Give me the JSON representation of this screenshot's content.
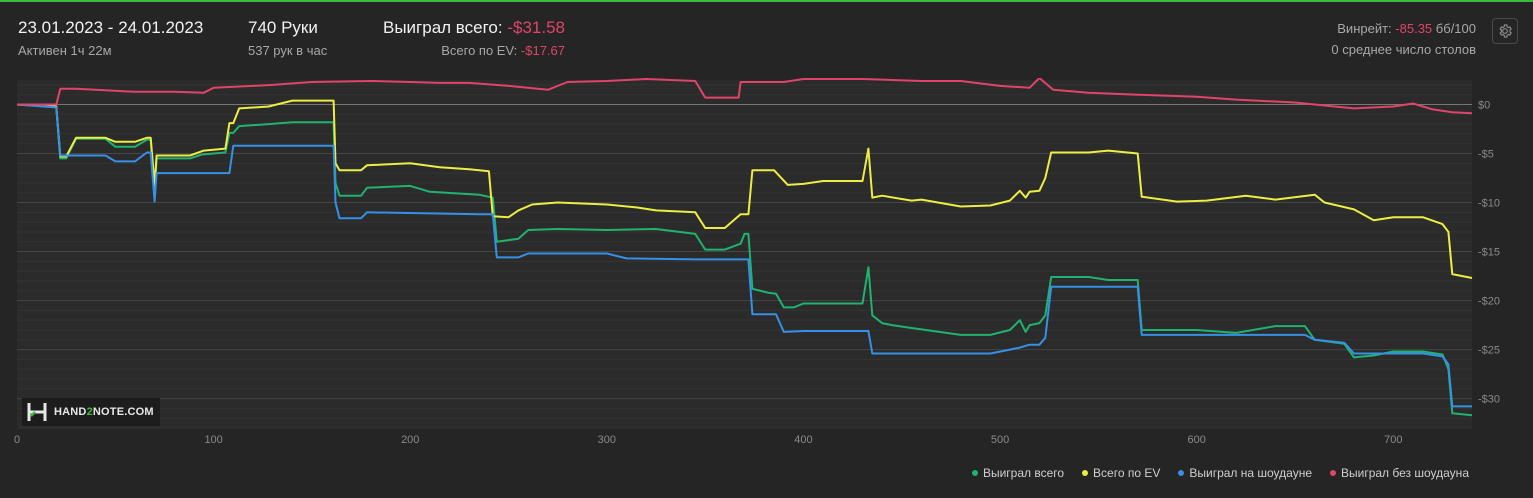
{
  "header": {
    "date_range": "23.01.2023 - 24.01.2023",
    "active_time": "Активен 1ч 22м",
    "hands": "740 Руки",
    "hands_per_hour": "537 рук в час",
    "won_total_label": "Выиграл всего:",
    "won_total_value": "-$31.58",
    "ev_total_label": "Всего по EV:",
    "ev_total_value": "-$17.67",
    "winrate_label": "Винрейт:",
    "winrate_value": "-85.35",
    "winrate_unit": "бб/100",
    "avg_tables": "0 среднее число столов",
    "settings_icon": "gear-icon"
  },
  "logo": {
    "text_pre": "HAND",
    "text_two": "2",
    "text_post": "NOTE.COM"
  },
  "legend": [
    {
      "label": "Выиграл всего",
      "color": "#1fb36f"
    },
    {
      "label": "Всего по EV",
      "color": "#eded42"
    },
    {
      "label": "Выиграл на шоудауне",
      "color": "#3590e6"
    },
    {
      "label": "Выиграл без шоудауна",
      "color": "#e0446a"
    }
  ],
  "chart_data": {
    "type": "line",
    "xlim": [
      0,
      740
    ],
    "ylim": [
      -33,
      2.5
    ],
    "x_ticks": [
      0,
      100,
      200,
      300,
      400,
      500,
      600,
      700
    ],
    "y_ticks": [
      {
        "value": 0,
        "label": "$0"
      },
      {
        "value": -5,
        "label": "-$5"
      },
      {
        "value": -10,
        "label": "-$10"
      },
      {
        "value": -15,
        "label": "-$15"
      },
      {
        "value": -20,
        "label": "-$20"
      },
      {
        "value": -25,
        "label": "-$25"
      },
      {
        "value": -30,
        "label": "-$30"
      }
    ],
    "grid": true,
    "legend_position": "bottom-right",
    "series": [
      {
        "name": "Выиграл всего",
        "color": "#1fb36f",
        "points": [
          [
            0,
            0
          ],
          [
            20,
            -0.3
          ],
          [
            22,
            -5.5
          ],
          [
            25,
            -5.5
          ],
          [
            30,
            -3.5
          ],
          [
            45,
            -3.5
          ],
          [
            50,
            -4.3
          ],
          [
            60,
            -4.3
          ],
          [
            66,
            -3.6
          ],
          [
            68,
            -3.6
          ],
          [
            70,
            -9.5
          ],
          [
            71,
            -5.5
          ],
          [
            88,
            -5.5
          ],
          [
            94,
            -5.1
          ],
          [
            106,
            -4.9
          ],
          [
            108,
            -2.9
          ],
          [
            110,
            -2.9
          ],
          [
            113,
            -2.2
          ],
          [
            128,
            -2.0
          ],
          [
            140,
            -1.8
          ],
          [
            161,
            -1.8
          ],
          [
            162,
            -8
          ],
          [
            164,
            -9.3
          ],
          [
            175,
            -9.3
          ],
          [
            178,
            -8.5
          ],
          [
            200,
            -8.3
          ],
          [
            210,
            -8.9
          ],
          [
            235,
            -9.2
          ],
          [
            242,
            -9.5
          ],
          [
            244,
            -14
          ],
          [
            255,
            -13.7
          ],
          [
            260,
            -12.8
          ],
          [
            275,
            -12.7
          ],
          [
            300,
            -12.8
          ],
          [
            325,
            -12.7
          ],
          [
            345,
            -13.2
          ],
          [
            350,
            -14.8
          ],
          [
            360,
            -14.8
          ],
          [
            368,
            -14.2
          ],
          [
            370,
            -13.2
          ],
          [
            372,
            -13.2
          ],
          [
            374,
            -18.8
          ],
          [
            382,
            -19.2
          ],
          [
            386,
            -19.3
          ],
          [
            390,
            -20.7
          ],
          [
            395,
            -20.7
          ],
          [
            400,
            -20.3
          ],
          [
            430,
            -20.3
          ],
          [
            433,
            -16.6
          ],
          [
            435,
            -21.5
          ],
          [
            440,
            -22.3
          ],
          [
            445,
            -22.5
          ],
          [
            455,
            -22.8
          ],
          [
            480,
            -23.5
          ],
          [
            495,
            -23.5
          ],
          [
            505,
            -23.0
          ],
          [
            510,
            -22.0
          ],
          [
            513,
            -23.2
          ],
          [
            515,
            -22.5
          ],
          [
            520,
            -22.3
          ],
          [
            523,
            -21.5
          ],
          [
            526,
            -17.6
          ],
          [
            545,
            -17.6
          ],
          [
            555,
            -17.9
          ],
          [
            570,
            -17.9
          ],
          [
            572,
            -23.0
          ],
          [
            600,
            -23.0
          ],
          [
            620,
            -23.3
          ],
          [
            640,
            -22.6
          ],
          [
            655,
            -22.6
          ],
          [
            660,
            -24.0
          ],
          [
            675,
            -24.4
          ],
          [
            680,
            -25.8
          ],
          [
            690,
            -25.6
          ],
          [
            700,
            -25.2
          ],
          [
            715,
            -25.2
          ],
          [
            725,
            -25.5
          ],
          [
            728,
            -27
          ],
          [
            730,
            -31.5
          ],
          [
            740,
            -31.7
          ]
        ]
      },
      {
        "name": "Всего по EV",
        "color": "#eded42",
        "points": [
          [
            0,
            0
          ],
          [
            20,
            -0.2
          ],
          [
            22,
            -5.3
          ],
          [
            25,
            -5.3
          ],
          [
            30,
            -3.4
          ],
          [
            45,
            -3.4
          ],
          [
            50,
            -3.8
          ],
          [
            60,
            -3.8
          ],
          [
            66,
            -3.4
          ],
          [
            68,
            -3.4
          ],
          [
            70,
            -8.2
          ],
          [
            71,
            -5.2
          ],
          [
            88,
            -5.2
          ],
          [
            95,
            -4.7
          ],
          [
            106,
            -4.5
          ],
          [
            108,
            -1.9
          ],
          [
            110,
            -1.9
          ],
          [
            113,
            -0.4
          ],
          [
            128,
            -0.2
          ],
          [
            140,
            0.4
          ],
          [
            161,
            0.4
          ],
          [
            162,
            -6
          ],
          [
            164,
            -6.7
          ],
          [
            175,
            -6.7
          ],
          [
            178,
            -6.2
          ],
          [
            200,
            -6.0
          ],
          [
            215,
            -6.4
          ],
          [
            230,
            -6.6
          ],
          [
            240,
            -6.8
          ],
          [
            242,
            -11.4
          ],
          [
            250,
            -11.5
          ],
          [
            255,
            -10.8
          ],
          [
            262,
            -10.2
          ],
          [
            275,
            -10.0
          ],
          [
            300,
            -10.2
          ],
          [
            315,
            -10.5
          ],
          [
            325,
            -10.8
          ],
          [
            345,
            -11.0
          ],
          [
            350,
            -12.6
          ],
          [
            360,
            -12.6
          ],
          [
            368,
            -11.2
          ],
          [
            372,
            -11.2
          ],
          [
            374,
            -6.7
          ],
          [
            385,
            -6.7
          ],
          [
            392,
            -8.2
          ],
          [
            400,
            -8.1
          ],
          [
            410,
            -7.8
          ],
          [
            430,
            -7.8
          ],
          [
            433,
            -4.5
          ],
          [
            435,
            -9.5
          ],
          [
            440,
            -9.3
          ],
          [
            455,
            -9.8
          ],
          [
            460,
            -9.7
          ],
          [
            480,
            -10.4
          ],
          [
            495,
            -10.3
          ],
          [
            505,
            -9.8
          ],
          [
            510,
            -8.8
          ],
          [
            513,
            -9.5
          ],
          [
            515,
            -8.9
          ],
          [
            520,
            -8.8
          ],
          [
            523,
            -7.5
          ],
          [
            526,
            -4.9
          ],
          [
            545,
            -4.9
          ],
          [
            555,
            -4.7
          ],
          [
            570,
            -5.0
          ],
          [
            572,
            -9.4
          ],
          [
            590,
            -9.9
          ],
          [
            605,
            -9.8
          ],
          [
            625,
            -9.3
          ],
          [
            640,
            -9.7
          ],
          [
            660,
            -9.2
          ],
          [
            665,
            -10.0
          ],
          [
            680,
            -10.7
          ],
          [
            690,
            -11.8
          ],
          [
            700,
            -11.5
          ],
          [
            715,
            -11.5
          ],
          [
            725,
            -12.2
          ],
          [
            728,
            -13
          ],
          [
            730,
            -17.3
          ],
          [
            740,
            -17.7
          ]
        ]
      },
      {
        "name": "Выиграл на шоудауне",
        "color": "#3590e6",
        "points": [
          [
            0,
            0
          ],
          [
            20,
            -0.3
          ],
          [
            22,
            -5.2
          ],
          [
            45,
            -5.2
          ],
          [
            50,
            -5.8
          ],
          [
            60,
            -5.8
          ],
          [
            66,
            -4.9
          ],
          [
            68,
            -4.9
          ],
          [
            70,
            -9.9
          ],
          [
            71,
            -7.0
          ],
          [
            108,
            -7.0
          ],
          [
            110,
            -4.2
          ],
          [
            161,
            -4.2
          ],
          [
            162,
            -10
          ],
          [
            164,
            -11.6
          ],
          [
            175,
            -11.6
          ],
          [
            178,
            -11.0
          ],
          [
            235,
            -11.2
          ],
          [
            242,
            -11.2
          ],
          [
            244,
            -15.6
          ],
          [
            255,
            -15.6
          ],
          [
            260,
            -15.2
          ],
          [
            300,
            -15.2
          ],
          [
            310,
            -15.7
          ],
          [
            345,
            -15.8
          ],
          [
            370,
            -15.8
          ],
          [
            372,
            -15.8
          ],
          [
            374,
            -21.4
          ],
          [
            386,
            -21.4
          ],
          [
            390,
            -23.2
          ],
          [
            400,
            -23.1
          ],
          [
            430,
            -23.1
          ],
          [
            433,
            -23.1
          ],
          [
            435,
            -25.4
          ],
          [
            480,
            -25.4
          ],
          [
            495,
            -25.4
          ],
          [
            505,
            -25.0
          ],
          [
            510,
            -24.8
          ],
          [
            515,
            -24.5
          ],
          [
            520,
            -24.5
          ],
          [
            523,
            -23.8
          ],
          [
            526,
            -18.6
          ],
          [
            570,
            -18.6
          ],
          [
            572,
            -23.5
          ],
          [
            640,
            -23.5
          ],
          [
            655,
            -23.5
          ],
          [
            660,
            -24.0
          ],
          [
            675,
            -24.3
          ],
          [
            680,
            -25.4
          ],
          [
            700,
            -25.4
          ],
          [
            715,
            -25.4
          ],
          [
            725,
            -25.7
          ],
          [
            728,
            -26.5
          ],
          [
            730,
            -30.8
          ],
          [
            740,
            -30.8
          ]
        ]
      },
      {
        "name": "Выиграл без шоудауна",
        "color": "#e0446a",
        "points": [
          [
            0,
            0
          ],
          [
            20,
            0
          ],
          [
            22,
            1.6
          ],
          [
            30,
            1.6
          ],
          [
            40,
            1.5
          ],
          [
            60,
            1.3
          ],
          [
            80,
            1.3
          ],
          [
            95,
            1.2
          ],
          [
            100,
            1.7
          ],
          [
            130,
            2.0
          ],
          [
            150,
            2.3
          ],
          [
            180,
            2.4
          ],
          [
            200,
            2.3
          ],
          [
            215,
            2.2
          ],
          [
            230,
            2.2
          ],
          [
            250,
            1.9
          ],
          [
            270,
            1.5
          ],
          [
            280,
            2.3
          ],
          [
            300,
            2.4
          ],
          [
            320,
            2.6
          ],
          [
            345,
            2.4
          ],
          [
            350,
            0.7
          ],
          [
            360,
            0.7
          ],
          [
            367,
            0.7
          ],
          [
            368,
            2.3
          ],
          [
            390,
            2.3
          ],
          [
            400,
            2.6
          ],
          [
            430,
            2.6
          ],
          [
            445,
            2.5
          ],
          [
            460,
            2.4
          ],
          [
            480,
            2.4
          ],
          [
            500,
            1.9
          ],
          [
            515,
            1.7
          ],
          [
            520,
            2.7
          ],
          [
            527,
            1.5
          ],
          [
            545,
            1.2
          ],
          [
            570,
            1.0
          ],
          [
            600,
            0.8
          ],
          [
            620,
            0.5
          ],
          [
            650,
            0.2
          ],
          [
            670,
            -0.2
          ],
          [
            680,
            -0.4
          ],
          [
            700,
            -0.2
          ],
          [
            710,
            0.1
          ],
          [
            720,
            -0.5
          ],
          [
            730,
            -0.8
          ],
          [
            740,
            -0.9
          ]
        ]
      }
    ]
  }
}
